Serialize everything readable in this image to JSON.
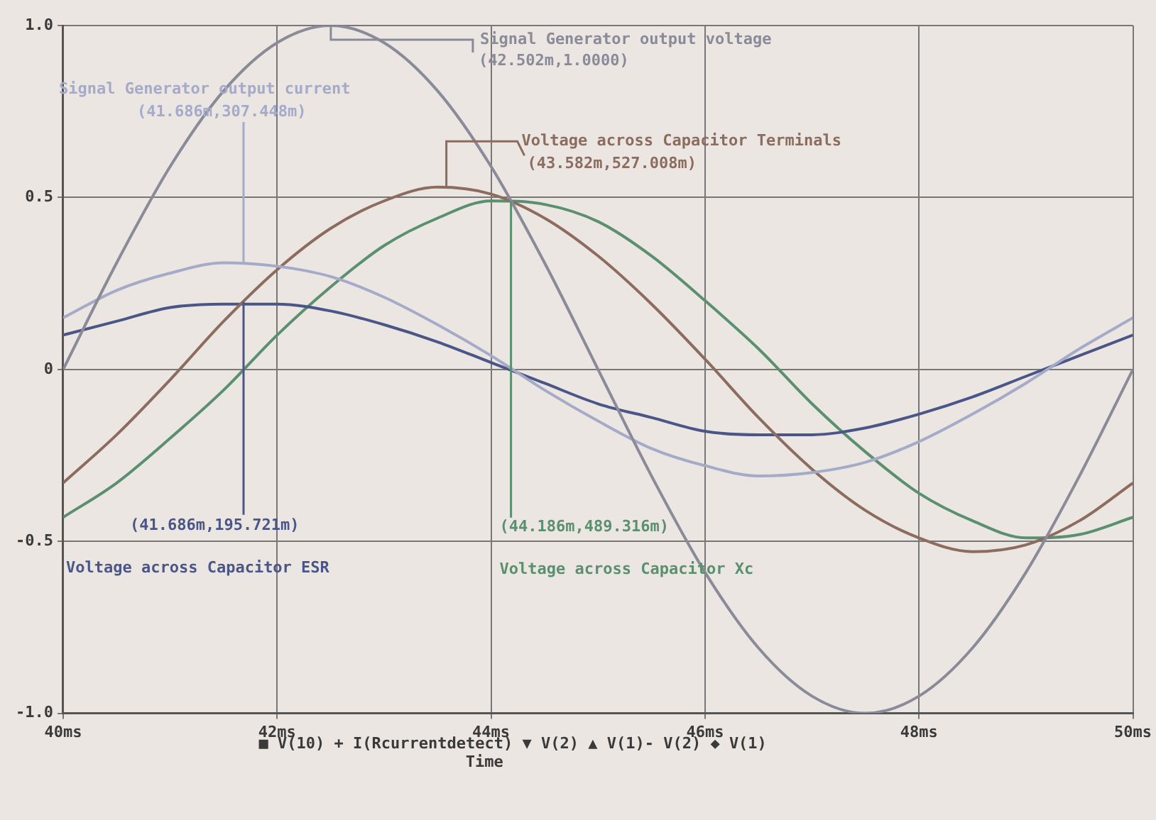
{
  "chart_data": {
    "type": "line",
    "xlabel": "Time",
    "x": [
      40,
      40.5,
      41,
      41.5,
      42,
      42.5,
      43,
      43.5,
      44,
      44.5,
      45,
      45.5,
      46,
      46.5,
      47,
      47.5,
      48,
      48.5,
      49,
      49.5,
      50
    ],
    "series": [
      {
        "name": "Signal Generator output voltage",
        "color": "#8a8a98",
        "values": [
          0,
          0.31,
          0.59,
          0.81,
          0.95,
          1,
          0.95,
          0.81,
          0.59,
          0.31,
          0,
          -0.31,
          -0.59,
          -0.81,
          -0.95,
          -1,
          -0.95,
          -0.81,
          -0.59,
          -0.31,
          0
        ]
      },
      {
        "name": "Signal Generator output current",
        "color": "#a4aac8",
        "values": [
          0.15,
          0.23,
          0.28,
          0.31,
          0.3,
          0.27,
          0.21,
          0.13,
          0.04,
          -0.06,
          -0.15,
          -0.23,
          -0.28,
          -0.31,
          -0.3,
          -0.27,
          -0.21,
          -0.13,
          -0.04,
          0.06,
          0.15
        ]
      },
      {
        "name": "Voltage across Capacitor Terminals",
        "color": "#8c6c5e",
        "values": [
          -0.33,
          -0.19,
          -0.03,
          0.14,
          0.29,
          0.41,
          0.49,
          0.53,
          0.51,
          0.44,
          0.33,
          0.19,
          0.03,
          -0.14,
          -0.29,
          -0.41,
          -0.49,
          -0.53,
          -0.51,
          -0.44,
          -0.33
        ]
      },
      {
        "name": "Voltage across Capacitor ESR",
        "color": "#4a5688",
        "values": [
          0.1,
          0.14,
          0.18,
          0.19,
          0.19,
          0.17,
          0.13,
          0.08,
          0.02,
          -0.04,
          -0.1,
          -0.14,
          -0.18,
          -0.19,
          -0.19,
          -0.17,
          -0.13,
          -0.08,
          -0.02,
          0.04,
          0.1
        ]
      },
      {
        "name": "Voltage across Capacitor Xc",
        "color": "#5a9070",
        "values": [
          -0.43,
          -0.33,
          -0.2,
          -0.06,
          0.1,
          0.24,
          0.36,
          0.44,
          0.49,
          0.48,
          0.43,
          0.33,
          0.2,
          0.06,
          -0.1,
          -0.24,
          -0.36,
          -0.44,
          -0.49,
          -0.48,
          -0.43
        ]
      }
    ],
    "xlim": [
      40,
      50
    ],
    "xticks": [
      {
        "value": 40,
        "label": "40ms"
      },
      {
        "value": 42,
        "label": "42ms"
      },
      {
        "value": 44,
        "label": "44ms"
      },
      {
        "value": 46,
        "label": "46ms"
      },
      {
        "value": 48,
        "label": "48ms"
      },
      {
        "value": 50,
        "label": "50ms"
      }
    ],
    "ylim": [
      -1,
      1
    ],
    "yticks": [
      {
        "value": -1,
        "label": "-1.0"
      },
      {
        "value": -0.5,
        "label": "-0.5"
      },
      0,
      {
        "value": 0.5,
        "label": "0.5"
      },
      {
        "value": 1,
        "label": "1.0"
      }
    ],
    "annotations": [
      {
        "text": "(42.502m,1.0000)",
        "x": 42.502,
        "y": 1.0
      },
      {
        "text": "(41.686m,307.448m)",
        "x": 41.686,
        "y": 0.307
      },
      {
        "text": "(43.582m,527.008m)",
        "x": 43.582,
        "y": 0.527
      },
      {
        "text": "(41.686m,195.721m)",
        "x": 41.686,
        "y": 0.196
      },
      {
        "text": "(44.186m,489.316m)",
        "x": 44.186,
        "y": 0.489
      },
      "■ V(10) + I(Rcurrentdetect) ▼ V(2) ▲ V(1)- V(2) ◆ V(1)"
    ],
    "grid": true,
    "legend": false,
    "marker": "none",
    "line_style": "solid"
  }
}
